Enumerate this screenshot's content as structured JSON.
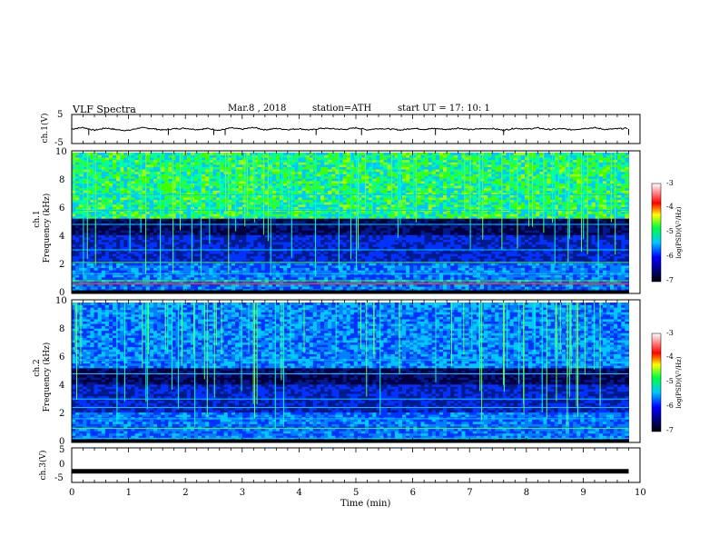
{
  "header": {
    "title": "VLF  Spectra",
    "date": "Mar.8  , 2018",
    "station": "station=ATH",
    "start": "start  UT  =   17: 10: 1"
  },
  "chart_data": [
    {
      "type": "line",
      "name_panel": "ch.1",
      "ylabel": "ch.1(V)",
      "ylim": [
        -5,
        5
      ],
      "yticks": [
        "5",
        "-5"
      ],
      "xlim": [
        0,
        10
      ],
      "x": [
        0,
        0.2,
        0.4,
        0.6,
        0.8,
        1.0,
        1.2,
        1.4,
        1.6,
        1.8,
        2.0,
        2.2,
        2.4,
        2.6,
        2.8,
        3.0,
        3.2,
        3.4,
        3.6,
        3.8,
        4.0,
        4.2,
        4.4,
        4.6,
        4.8,
        5.0,
        5.2,
        5.4,
        5.6,
        5.8,
        6.0,
        6.2,
        6.4,
        6.6,
        6.8,
        7.0,
        7.2,
        7.4,
        7.6,
        7.8,
        8.0,
        8.2,
        8.4,
        8.6,
        8.8,
        9.0,
        9.2,
        9.4,
        9.6,
        9.8
      ],
      "values": [
        0.0,
        0.6,
        -0.5,
        0.4,
        -0.3,
        -0.6,
        0.5,
        0.2,
        -0.4,
        0.1,
        0.3,
        -0.2,
        0.2,
        -0.5,
        0.4,
        -0.1,
        0.6,
        -0.3,
        0.2,
        -0.2,
        0.1,
        -0.4,
        0.3,
        0.1,
        -0.2,
        0.5,
        -0.3,
        0.2,
        0.0,
        -0.4,
        0.3,
        -0.1,
        0.2,
        -0.2,
        0.4,
        -0.3,
        0.1,
        0.2,
        -0.5,
        0.3,
        0.0,
        0.4,
        -0.2,
        0.1,
        -0.3,
        0.2,
        0.5,
        -0.2,
        0.1,
        0.3
      ],
      "color": "#000000"
    },
    {
      "type": "heatmap",
      "name_panel": "ch.1",
      "ylabel": "ch.1",
      "ylabel2": "Frequency  (kHz)",
      "ylim": [
        0,
        10
      ],
      "yticks": [
        "0",
        "2",
        "4",
        "6",
        "8",
        "10"
      ],
      "xlim": [
        0,
        10
      ],
      "colorbar": {
        "label": "log(PSD)(V²/Hz)",
        "range": [
          -7,
          -3
        ],
        "ticks": [
          "-3",
          "-4",
          "-5",
          "-6",
          "-7"
        ]
      }
    },
    {
      "type": "heatmap",
      "name_panel": "ch.2",
      "ylabel": "ch.2",
      "ylabel2": "Frequency  (kHz)",
      "ylim": [
        0,
        10
      ],
      "yticks": [
        "0",
        "2",
        "4",
        "6",
        "8",
        "10"
      ],
      "xlim": [
        0,
        10
      ],
      "colorbar": {
        "label": "log(PSD)(V²/Hz)",
        "range": [
          -7,
          -3
        ],
        "ticks": [
          "-3",
          "-4",
          "-5",
          "-6",
          "-7"
        ]
      }
    },
    {
      "type": "line",
      "name_panel": "ch.3",
      "ylabel": "ch.3(V)",
      "ylim": [
        -5,
        5
      ],
      "yticks": [
        "5",
        "0",
        "-5"
      ],
      "xlim": [
        0,
        10
      ],
      "x": [
        0,
        9.8
      ],
      "values": [
        -2,
        -2
      ],
      "xlabel": "Time  (min)",
      "xticks": [
        "0",
        "1",
        "2",
        "3",
        "4",
        "5",
        "6",
        "7",
        "8",
        "9",
        "10"
      ],
      "color": "#000000"
    }
  ]
}
